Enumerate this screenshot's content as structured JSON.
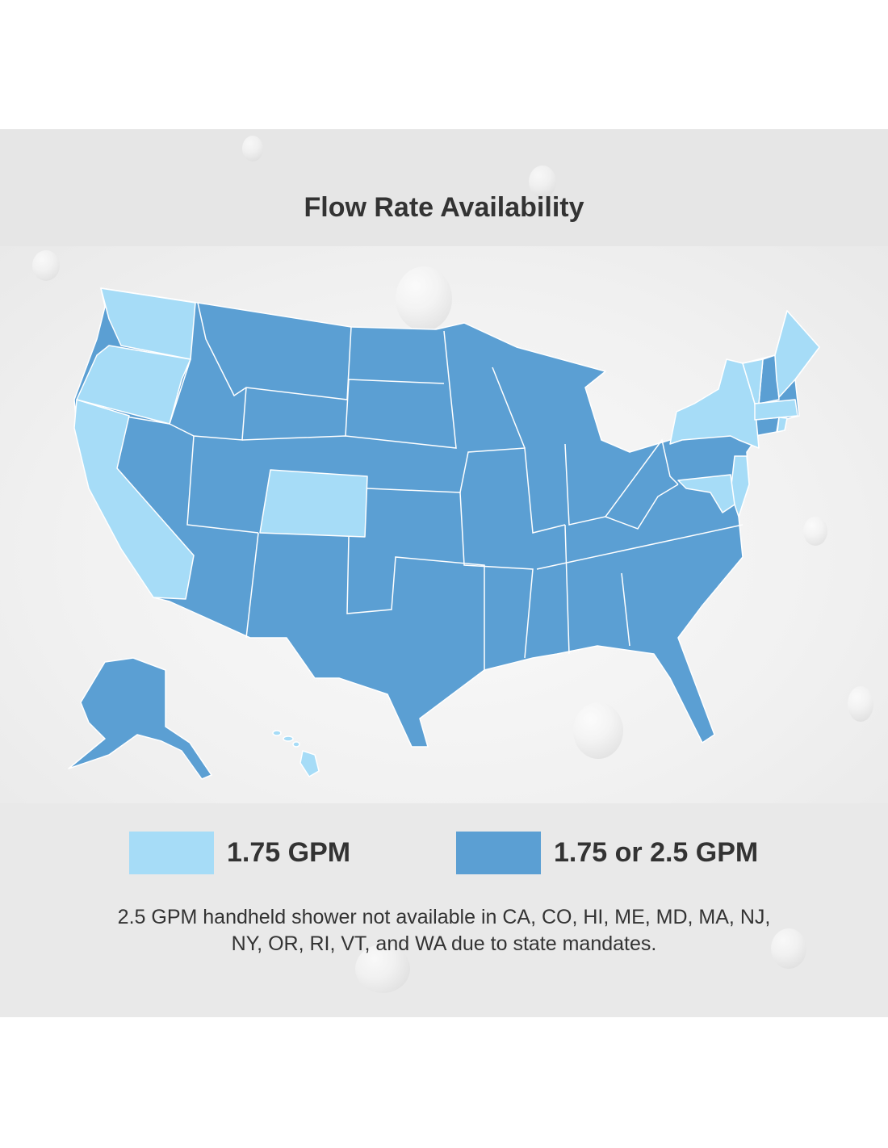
{
  "title": "Flow Rate Availability",
  "colors": {
    "light": "#a6dcf7",
    "dark": "#5b9fd3",
    "border": "#ffffff",
    "text": "#333333"
  },
  "legend": [
    {
      "label": "1.75 GPM",
      "color": "#a6dcf7"
    },
    {
      "label": "1.75 or 2.5 GPM",
      "color": "#5b9fd3"
    }
  ],
  "map": {
    "light_states": [
      "WA",
      "OR",
      "CA",
      "CO",
      "HI",
      "ME",
      "VT",
      "MA",
      "RI",
      "NY",
      "NJ",
      "MD"
    ],
    "dark_states": "all other states"
  },
  "footnote": {
    "line1": "2.5 GPM handheld shower not available in CA, CO, HI, ME, MD, MA, NJ,",
    "line2": "NY, OR, RI, VT, and WA due to state mandates."
  }
}
